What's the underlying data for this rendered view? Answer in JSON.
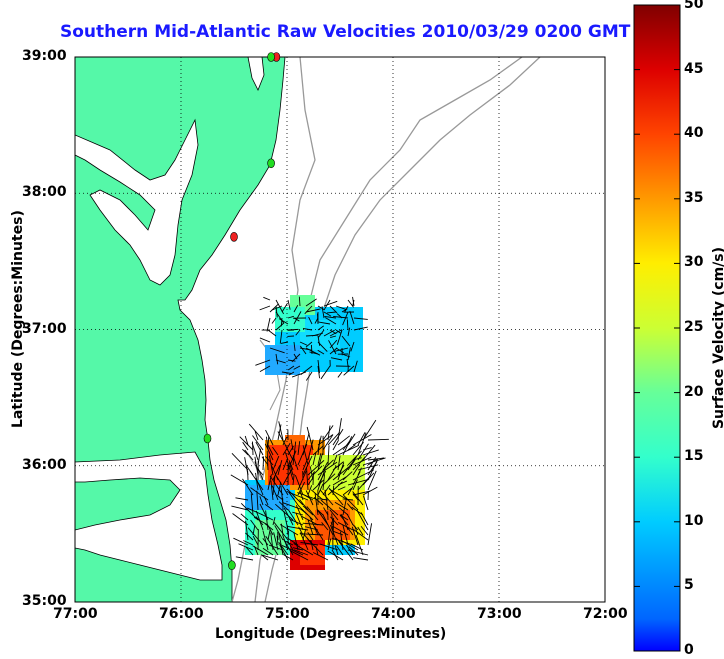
{
  "title": "Southern Mid-Atlantic Raw Velocities 2010/03/29 0200 GMT",
  "axes": {
    "xlabel": "Longitude (Degrees:Minutes)",
    "ylabel": "Latitude (Degrees:Minutes)",
    "x_ticks": [
      "77:00",
      "76:00",
      "75:00",
      "74:00",
      "73:00",
      "72:00"
    ],
    "y_ticks": [
      "39:00",
      "38:00",
      "37:00",
      "36:00",
      "35:00"
    ],
    "xlim": [
      -77,
      -72
    ],
    "ylim": [
      35,
      39
    ],
    "grid": "dotted"
  },
  "colorbar": {
    "label": "Surface Velocity (cm/s)",
    "ticks": [
      "0",
      "5",
      "10",
      "15",
      "20",
      "25",
      "30",
      "35",
      "40",
      "45",
      "50"
    ],
    "range": [
      0,
      50
    ],
    "colormap": "jet"
  },
  "colors": {
    "land": "#55f8a8",
    "title": "#1a1aff",
    "bathymetry": "#999999",
    "station_green": "#22dd22",
    "station_red": "#ee2222"
  },
  "stations": [
    {
      "lon": -75.1,
      "lat": 39.0,
      "status": "red"
    },
    {
      "lon": -75.15,
      "lat": 39.0,
      "status": "green"
    },
    {
      "lon": -75.15,
      "lat": 38.22,
      "status": "green"
    },
    {
      "lon": -75.5,
      "lat": 37.68,
      "status": "red"
    },
    {
      "lon": -75.75,
      "lat": 36.2,
      "status": "green"
    },
    {
      "lon": -75.52,
      "lat": 35.27,
      "status": "green"
    }
  ]
}
